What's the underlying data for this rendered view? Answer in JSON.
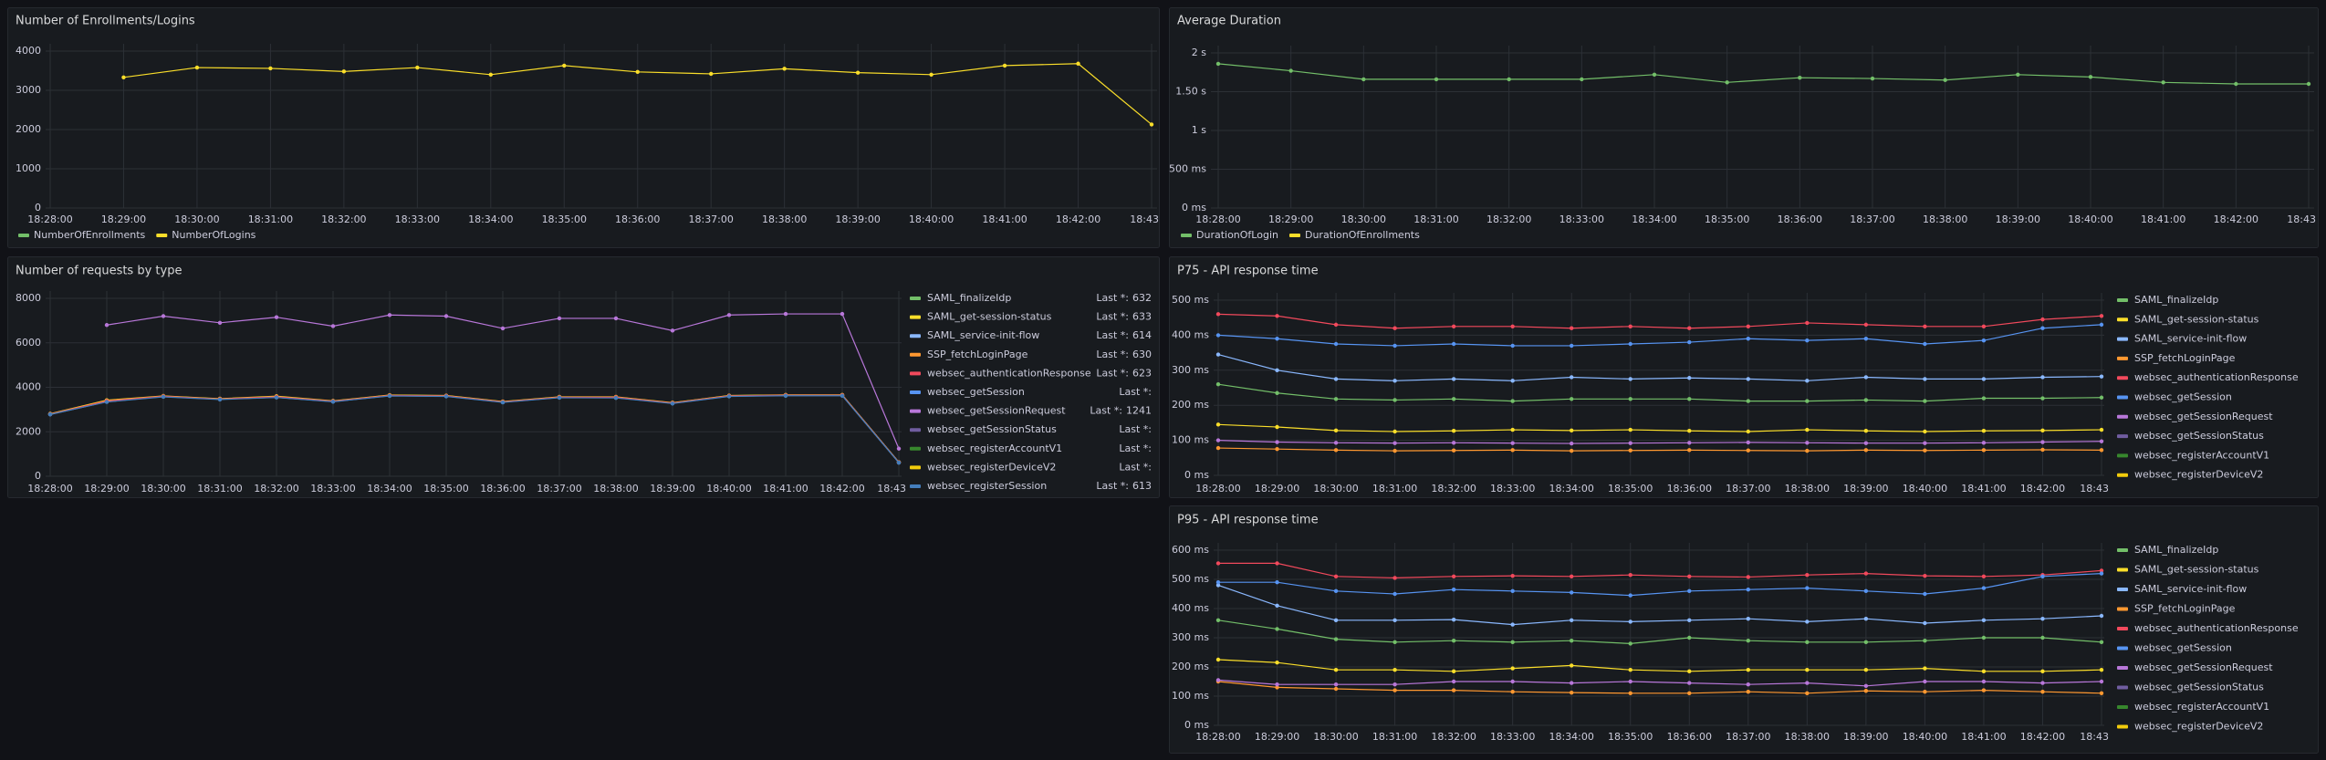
{
  "chart_data": [
    {
      "type": "line",
      "title": "Number of Enrollments/Logins",
      "categories": [
        "18:28:00",
        "18:29:00",
        "18:30:00",
        "18:31:00",
        "18:32:00",
        "18:33:00",
        "18:34:00",
        "18:35:00",
        "18:36:00",
        "18:37:00",
        "18:38:00",
        "18:39:00",
        "18:40:00",
        "18:41:00",
        "18:42:00",
        "18:43"
      ],
      "ylim": [
        0,
        4000
      ],
      "yticks": [
        0,
        1000,
        2000,
        3000,
        4000
      ],
      "grid": true,
      "legend": "bottom",
      "series": [
        {
          "name": "NumberOfEnrollments",
          "color": "#73bf69",
          "values": [
            null,
            null,
            null,
            null,
            null,
            null,
            null,
            null,
            null,
            null,
            null,
            null,
            null,
            null,
            null,
            null
          ]
        },
        {
          "name": "NumberOfLogins",
          "color": "#fade2a",
          "values": [
            null,
            3330,
            3580,
            3560,
            3480,
            3580,
            3400,
            3630,
            3470,
            3420,
            3550,
            3450,
            3400,
            3630,
            3680,
            2130
          ]
        }
      ]
    },
    {
      "type": "line",
      "title": "Average Duration",
      "categories": [
        "18:28:00",
        "18:29:00",
        "18:30:00",
        "18:31:00",
        "18:32:00",
        "18:33:00",
        "18:34:00",
        "18:35:00",
        "18:36:00",
        "18:37:00",
        "18:38:00",
        "18:39:00",
        "18:40:00",
        "18:41:00",
        "18:42:00",
        "18:43"
      ],
      "ylim": [
        0,
        2000
      ],
      "yticks": [
        {
          "value": 0,
          "label": "0 ms"
        },
        {
          "value": 500,
          "label": "500 ms"
        },
        {
          "value": 1000,
          "label": "1 s"
        },
        {
          "value": 1500,
          "label": "1.50 s"
        },
        {
          "value": 2000,
          "label": "2 s"
        }
      ],
      "grid": true,
      "legend": "bottom",
      "series": [
        {
          "name": "DurationOfLogin",
          "color": "#73bf69",
          "values": [
            1860,
            1770,
            1660,
            1660,
            1660,
            1660,
            1720,
            1620,
            1680,
            1670,
            1650,
            1720,
            1690,
            1620,
            1600,
            1600
          ]
        },
        {
          "name": "DurationOfEnrollments",
          "color": "#fade2a",
          "values": [
            null,
            null,
            null,
            null,
            null,
            null,
            null,
            null,
            null,
            null,
            null,
            null,
            null,
            null,
            null,
            null
          ]
        }
      ]
    },
    {
      "type": "line",
      "title": "Number of requests by type",
      "categories": [
        "18:28:00",
        "18:29:00",
        "18:30:00",
        "18:31:00",
        "18:32:00",
        "18:33:00",
        "18:34:00",
        "18:35:00",
        "18:36:00",
        "18:37:00",
        "18:38:00",
        "18:39:00",
        "18:40:00",
        "18:41:00",
        "18:42:00",
        "18:43"
      ],
      "ylim": [
        0,
        8000
      ],
      "yticks": [
        0,
        2000,
        4000,
        6000,
        8000
      ],
      "grid": true,
      "legend": "right",
      "legend_calc": "Last *:",
      "series": [
        {
          "name": "SAML_finalizeIdp",
          "color": "#73bf69",
          "last": 632,
          "values": [
            2800,
            3400,
            3600,
            3480,
            3580,
            3380,
            3640,
            3620,
            3350,
            3560,
            3560,
            3300,
            3620,
            3650,
            3650,
            632
          ]
        },
        {
          "name": "SAML_get-session-status",
          "color": "#fade2a",
          "last": 633,
          "values": [
            2810,
            3420,
            3610,
            3490,
            3600,
            3390,
            3650,
            3630,
            3360,
            3570,
            3570,
            3310,
            3630,
            3660,
            3660,
            633
          ]
        },
        {
          "name": "SAML_service-init-flow",
          "color": "#8ab8ff",
          "last": 614,
          "values": [
            2780,
            3350,
            3580,
            3460,
            3550,
            3360,
            3620,
            3600,
            3330,
            3540,
            3530,
            3280,
            3600,
            3630,
            3630,
            614
          ]
        },
        {
          "name": "SSP_fetchLoginPage",
          "color": "#ff9830",
          "last": 630,
          "values": [
            2800,
            3390,
            3600,
            3475,
            3575,
            3375,
            3635,
            3615,
            3345,
            3555,
            3555,
            3295,
            3615,
            3645,
            3645,
            630
          ]
        },
        {
          "name": "websec_authenticationResponse",
          "color": "#f2495c",
          "last": 623,
          "values": [
            2790,
            3380,
            3590,
            3470,
            3570,
            3370,
            3630,
            3610,
            3340,
            3550,
            3550,
            3290,
            3610,
            3640,
            3640,
            623
          ]
        },
        {
          "name": "websec_getSession",
          "color": "#5794f2",
          "last": null,
          "values": [
            null,
            null,
            null,
            null,
            null,
            null,
            null,
            null,
            null,
            null,
            null,
            null,
            null,
            null,
            null,
            null
          ]
        },
        {
          "name": "websec_getSessionRequest",
          "color": "#b877d9",
          "last": 1241,
          "values": [
            null,
            6800,
            7200,
            6900,
            7150,
            6750,
            7250,
            7200,
            6650,
            7100,
            7100,
            6550,
            7250,
            7300,
            7300,
            1241
          ]
        },
        {
          "name": "websec_getSessionStatus",
          "color": "#705da0",
          "last": null,
          "values": [
            null,
            null,
            null,
            null,
            null,
            null,
            null,
            null,
            null,
            null,
            null,
            null,
            null,
            null,
            null,
            null
          ]
        },
        {
          "name": "websec_registerAccountV1",
          "color": "#37872d",
          "last": null,
          "values": [
            null,
            null,
            null,
            null,
            null,
            null,
            null,
            null,
            null,
            null,
            null,
            null,
            null,
            null,
            null,
            null
          ]
        },
        {
          "name": "websec_registerDeviceV2",
          "color": "#f2cc0c",
          "last": null,
          "values": [
            null,
            null,
            null,
            null,
            null,
            null,
            null,
            null,
            null,
            null,
            null,
            null,
            null,
            null,
            null,
            null
          ]
        },
        {
          "name": "websec_registerSession",
          "color": "#447ebc",
          "last": 613,
          "values": [
            2780,
            3340,
            3570,
            3450,
            3540,
            3350,
            3610,
            3590,
            3320,
            3530,
            3520,
            3270,
            3590,
            3620,
            3620,
            613
          ]
        }
      ]
    },
    {
      "type": "line",
      "title": "P75 - API response time",
      "categories": [
        "18:28:00",
        "18:29:00",
        "18:30:00",
        "18:31:00",
        "18:32:00",
        "18:33:00",
        "18:34:00",
        "18:35:00",
        "18:36:00",
        "18:37:00",
        "18:38:00",
        "18:39:00",
        "18:40:00",
        "18:41:00",
        "18:42:00",
        "18:43"
      ],
      "ylim": [
        0,
        500
      ],
      "yticks": [
        {
          "value": 0,
          "label": "0 ms"
        },
        {
          "value": 100,
          "label": "100 ms"
        },
        {
          "value": 200,
          "label": "200 ms"
        },
        {
          "value": 300,
          "label": "300 ms"
        },
        {
          "value": 400,
          "label": "400 ms"
        },
        {
          "value": 500,
          "label": "500 ms"
        }
      ],
      "grid": true,
      "legend": "right",
      "series": [
        {
          "name": "SAML_finalizeIdp",
          "color": "#73bf69",
          "values": [
            260,
            235,
            218,
            215,
            218,
            212,
            218,
            218,
            218,
            212,
            212,
            215,
            212,
            220,
            220,
            222
          ]
        },
        {
          "name": "SAML_get-session-status",
          "color": "#fade2a",
          "values": [
            145,
            138,
            128,
            125,
            127,
            130,
            128,
            130,
            127,
            125,
            130,
            127,
            125,
            127,
            128,
            130
          ]
        },
        {
          "name": "SAML_service-init-flow",
          "color": "#8ab8ff",
          "values": [
            345,
            300,
            275,
            270,
            275,
            270,
            280,
            275,
            278,
            275,
            270,
            280,
            275,
            275,
            280,
            282
          ]
        },
        {
          "name": "SSP_fetchLoginPage",
          "color": "#ff9830",
          "values": [
            78,
            75,
            72,
            70,
            71,
            72,
            70,
            71,
            72,
            71,
            70,
            72,
            71,
            72,
            73,
            72
          ]
        },
        {
          "name": "websec_authenticationResponse",
          "color": "#f2495c",
          "values": [
            460,
            455,
            430,
            420,
            425,
            425,
            420,
            425,
            420,
            425,
            435,
            430,
            425,
            425,
            445,
            455
          ]
        },
        {
          "name": "websec_getSession",
          "color": "#5794f2",
          "values": [
            400,
            390,
            375,
            370,
            375,
            370,
            370,
            375,
            380,
            390,
            385,
            390,
            375,
            385,
            420,
            430
          ]
        },
        {
          "name": "websec_getSessionRequest",
          "color": "#b877d9",
          "values": [
            100,
            95,
            93,
            92,
            93,
            92,
            91,
            92,
            93,
            94,
            93,
            92,
            92,
            93,
            95,
            97
          ]
        },
        {
          "name": "websec_getSessionStatus",
          "color": "#705da0",
          "values": [
            null,
            null,
            null,
            null,
            null,
            null,
            null,
            null,
            null,
            null,
            null,
            null,
            null,
            null,
            null,
            null
          ]
        },
        {
          "name": "websec_registerAccountV1",
          "color": "#37872d",
          "values": [
            null,
            null,
            null,
            null,
            null,
            null,
            null,
            null,
            null,
            null,
            null,
            null,
            null,
            null,
            null,
            null
          ]
        },
        {
          "name": "websec_registerDeviceV2",
          "color": "#f2cc0c",
          "values": [
            null,
            null,
            null,
            null,
            null,
            null,
            null,
            null,
            null,
            null,
            null,
            null,
            null,
            null,
            null,
            null
          ]
        }
      ]
    },
    {
      "type": "line",
      "title": "P95 - API response time",
      "categories": [
        "18:28:00",
        "18:29:00",
        "18:30:00",
        "18:31:00",
        "18:32:00",
        "18:33:00",
        "18:34:00",
        "18:35:00",
        "18:36:00",
        "18:37:00",
        "18:38:00",
        "18:39:00",
        "18:40:00",
        "18:41:00",
        "18:42:00",
        "18:43"
      ],
      "ylim": [
        0,
        600
      ],
      "yticks": [
        {
          "value": 0,
          "label": "0 ms"
        },
        {
          "value": 100,
          "label": "100 ms"
        },
        {
          "value": 200,
          "label": "200 ms"
        },
        {
          "value": 300,
          "label": "300 ms"
        },
        {
          "value": 400,
          "label": "400 ms"
        },
        {
          "value": 500,
          "label": "500 ms"
        },
        {
          "value": 600,
          "label": "600 ms"
        }
      ],
      "grid": true,
      "legend": "right",
      "series": [
        {
          "name": "SAML_finalizeIdp",
          "color": "#73bf69",
          "values": [
            360,
            330,
            295,
            285,
            290,
            285,
            290,
            280,
            300,
            290,
            285,
            285,
            290,
            300,
            300,
            285
          ]
        },
        {
          "name": "SAML_get-session-status",
          "color": "#fade2a",
          "values": [
            225,
            215,
            190,
            190,
            185,
            195,
            205,
            190,
            185,
            190,
            190,
            190,
            195,
            185,
            185,
            190
          ]
        },
        {
          "name": "SAML_service-init-flow",
          "color": "#8ab8ff",
          "values": [
            480,
            410,
            360,
            360,
            362,
            345,
            360,
            355,
            360,
            365,
            355,
            365,
            350,
            360,
            365,
            375
          ]
        },
        {
          "name": "SSP_fetchLoginPage",
          "color": "#ff9830",
          "values": [
            150,
            130,
            125,
            120,
            120,
            115,
            112,
            110,
            110,
            115,
            110,
            118,
            115,
            120,
            115,
            110
          ]
        },
        {
          "name": "websec_authenticationResponse",
          "color": "#f2495c",
          "values": [
            555,
            555,
            510,
            505,
            510,
            512,
            510,
            515,
            510,
            508,
            515,
            520,
            512,
            510,
            515,
            530
          ]
        },
        {
          "name": "websec_getSession",
          "color": "#5794f2",
          "values": [
            490,
            490,
            460,
            450,
            465,
            460,
            455,
            445,
            460,
            465,
            470,
            460,
            450,
            470,
            510,
            520
          ]
        },
        {
          "name": "websec_getSessionRequest",
          "color": "#b877d9",
          "values": [
            155,
            140,
            140,
            140,
            150,
            150,
            145,
            150,
            145,
            140,
            145,
            135,
            150,
            150,
            145,
            150
          ]
        },
        {
          "name": "websec_getSessionStatus",
          "color": "#705da0",
          "values": [
            null,
            null,
            null,
            null,
            null,
            null,
            null,
            null,
            null,
            null,
            null,
            null,
            null,
            null,
            null,
            null
          ]
        },
        {
          "name": "websec_registerAccountV1",
          "color": "#37872d",
          "values": [
            null,
            null,
            null,
            null,
            null,
            null,
            null,
            null,
            null,
            null,
            null,
            null,
            null,
            null,
            null,
            null
          ]
        },
        {
          "name": "websec_registerDeviceV2",
          "color": "#f2cc0c",
          "values": [
            null,
            null,
            null,
            null,
            null,
            null,
            null,
            null,
            null,
            null,
            null,
            null,
            null,
            null,
            null,
            null
          ]
        }
      ]
    }
  ]
}
